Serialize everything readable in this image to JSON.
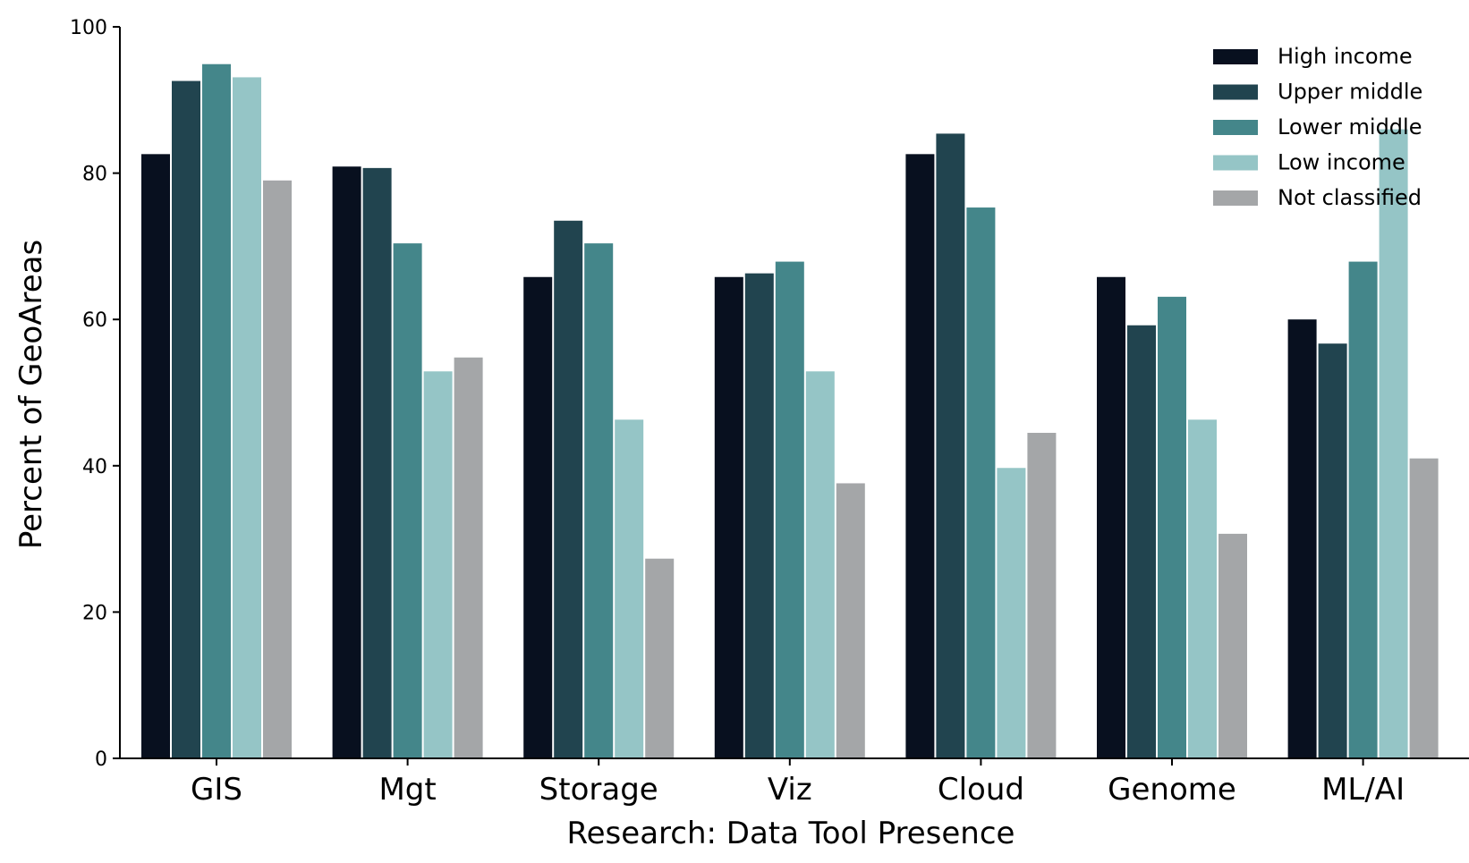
{
  "chart_data": {
    "type": "bar",
    "title": "",
    "xlabel": "Research: Data Tool Presence",
    "ylabel": "Percent of GeoAreas",
    "ylim": [
      0,
      100
    ],
    "yticks": [
      0,
      20,
      40,
      60,
      80,
      100
    ],
    "grid": false,
    "legend_position": "top-right",
    "categories": [
      "GIS",
      "Mgt",
      "Storage",
      "Viz",
      "Cloud",
      "Genome",
      "ML/AI"
    ],
    "series": [
      {
        "name": "High income",
        "color": "#08101f",
        "values": [
          82.6,
          80.9,
          65.8,
          65.8,
          82.6,
          65.8,
          60.0
        ]
      },
      {
        "name": "Upper middle",
        "color": "#21444f",
        "values": [
          92.6,
          80.7,
          73.5,
          66.3,
          85.4,
          59.2,
          56.7
        ]
      },
      {
        "name": "Lower middle",
        "color": "#44868a",
        "values": [
          94.9,
          70.4,
          70.4,
          67.9,
          75.3,
          63.1,
          67.9
        ]
      },
      {
        "name": "Low income",
        "color": "#95c5c6",
        "values": [
          93.1,
          52.9,
          46.3,
          52.9,
          39.7,
          46.3,
          86.0
        ]
      },
      {
        "name": "Not classified",
        "color": "#a4a6a8",
        "values": [
          79.0,
          54.8,
          27.3,
          37.6,
          44.5,
          30.7,
          41.0
        ]
      }
    ]
  }
}
